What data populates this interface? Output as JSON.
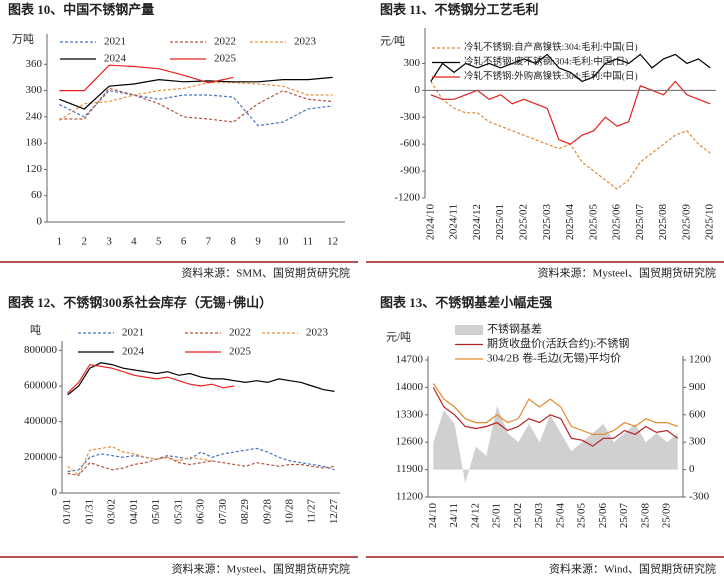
{
  "chart_data": [
    {
      "type": "line",
      "title": "图表 10、中国不锈钢产量",
      "source": "资料来源：SMM、国贸期货研究院",
      "y_label": "万吨",
      "categories": [
        "1",
        "2",
        "3",
        "4",
        "5",
        "6",
        "7",
        "8",
        "9",
        "10",
        "11",
        "12"
      ],
      "ylim": [
        0,
        420
      ],
      "yticks": [
        0,
        60,
        120,
        180,
        240,
        300,
        360
      ],
      "series": [
        {
          "name": "2021",
          "color": "#4472c4",
          "dash": true,
          "values": [
            268,
            240,
            300,
            290,
            280,
            290,
            290,
            285,
            220,
            228,
            258,
            265
          ]
        },
        {
          "name": "2022",
          "color": "#b5533c",
          "dash": true,
          "values": [
            235,
            235,
            305,
            290,
            270,
            240,
            235,
            228,
            270,
            300,
            280,
            275
          ]
        },
        {
          "name": "2023",
          "color": "#e69138",
          "dash": true,
          "values": [
            232,
            270,
            275,
            290,
            300,
            305,
            318,
            318,
            315,
            310,
            290,
            290
          ]
        },
        {
          "name": "2024",
          "color": "#000000",
          "values": [
            280,
            258,
            310,
            315,
            325,
            320,
            322,
            320,
            320,
            325,
            325,
            330
          ]
        },
        {
          "name": "2025",
          "color": "#e8231f",
          "values": [
            300,
            300,
            358,
            355,
            350,
            335,
            318,
            330,
            null,
            null,
            null,
            null
          ]
        }
      ]
    },
    {
      "type": "line",
      "title": "图表 11、不锈钢分工艺毛利",
      "source": "资料来源：Mysteel、国贸期货研究院",
      "y_label": "元/吨",
      "categories": [
        "2024/10",
        null,
        "2024/11",
        null,
        "2024/12",
        null,
        "2025/01",
        null,
        "2025/02",
        null,
        "2025/03",
        null,
        "2025/04",
        null,
        "2025/05",
        null,
        "2025/06",
        null,
        "2025/07",
        null,
        "2025/08",
        null,
        "2025/09",
        null,
        "2025/10"
      ],
      "ylim": [
        -1200,
        650
      ],
      "yticks": [
        -1200,
        -900,
        -600,
        -300,
        0,
        300
      ],
      "series": [
        {
          "name": "冷轧不锈钢:自产高镍铁:304:毛利:中国(日)",
          "color": "#e0892e",
          "dash": true,
          "values": [
            100,
            -100,
            -200,
            -250,
            -250,
            -350,
            -400,
            -450,
            -500,
            -550,
            -600,
            -650,
            -600,
            -800,
            -900,
            -1000,
            -1100,
            -1000,
            -800,
            -700,
            -600,
            -500,
            -450,
            -600,
            -700
          ]
        },
        {
          "name": "冷轧不锈钢:废不锈钢:304:毛利:中国(日)",
          "color": "#000000",
          "values": [
            100,
            300,
            200,
            300,
            250,
            300,
            250,
            300,
            350,
            300,
            400,
            250,
            200,
            100,
            150,
            300,
            350,
            300,
            400,
            250,
            350,
            400,
            300,
            350,
            250
          ]
        },
        {
          "name": "冷轧不锈钢:外购高镍铁:304:毛利:中国(日)",
          "color": "#e32119",
          "values": [
            -50,
            -100,
            -100,
            -50,
            0,
            -100,
            -50,
            -150,
            -100,
            -150,
            -200,
            -550,
            -600,
            -500,
            -450,
            -300,
            -400,
            -350,
            50,
            0,
            -50,
            100,
            -50,
            -100,
            -150
          ]
        }
      ]
    },
    {
      "type": "line",
      "title": "图表 12、不锈钢300系社会库存（无锡+佛山）",
      "source": "资料来源：Mysteel、国贸期货研究院",
      "y_label": "吨",
      "categories": [
        "01/01",
        null,
        "01/31",
        null,
        "03/02",
        null,
        "04/01",
        null,
        "05/01",
        null,
        "05/31",
        null,
        "06/30",
        null,
        "07/30",
        null,
        "08/29",
        null,
        "09/28",
        null,
        "10/28",
        null,
        "11/27",
        null,
        "12/27"
      ],
      "ylim": [
        0,
        830000
      ],
      "yticks": [
        0,
        200000,
        400000,
        600000,
        800000
      ],
      "series": [
        {
          "name": "2021",
          "color": "#4472c4",
          "dash": true,
          "values": [
            120000,
            130000,
            200000,
            220000,
            210000,
            200000,
            210000,
            200000,
            190000,
            210000,
            200000,
            190000,
            230000,
            200000,
            220000,
            230000,
            240000,
            250000,
            230000,
            200000,
            180000,
            170000,
            160000,
            150000,
            130000
          ]
        },
        {
          "name": "2022",
          "color": "#b5533c",
          "dash": true,
          "values": [
            110000,
            100000,
            170000,
            150000,
            130000,
            140000,
            160000,
            170000,
            190000,
            200000,
            170000,
            160000,
            170000,
            180000,
            170000,
            160000,
            150000,
            170000,
            160000,
            150000,
            160000,
            160000,
            150000,
            140000,
            150000
          ]
        },
        {
          "name": "2023",
          "color": "#e69138",
          "dash": true,
          "values": [
            150000,
            100000,
            240000,
            250000,
            260000,
            230000,
            220000,
            200000,
            190000,
            200000,
            180000,
            200000,
            190000,
            180000,
            null,
            null,
            null,
            null,
            null,
            null,
            null,
            null,
            null,
            null,
            null
          ]
        },
        {
          "name": "2024",
          "color": "#000000",
          "values": [
            550000,
            600000,
            700000,
            730000,
            720000,
            700000,
            690000,
            680000,
            670000,
            680000,
            660000,
            670000,
            650000,
            640000,
            640000,
            630000,
            620000,
            630000,
            620000,
            640000,
            630000,
            620000,
            600000,
            580000,
            570000
          ]
        },
        {
          "name": "2025",
          "color": "#e8231f",
          "values": [
            560000,
            620000,
            720000,
            710000,
            700000,
            680000,
            660000,
            650000,
            640000,
            650000,
            630000,
            610000,
            600000,
            610000,
            590000,
            600000,
            null,
            null,
            null,
            null,
            null,
            null,
            null,
            null,
            null
          ]
        }
      ]
    },
    {
      "type": "line",
      "title": "图表 13、不锈钢基差小幅走强",
      "source": "资料来源：Wind、国贸期货研究院",
      "y_label": "元/吨",
      "categories": [
        "24/10",
        null,
        "24/11",
        null,
        "24/12",
        null,
        "25/01",
        null,
        "25/02",
        null,
        "25/03",
        null,
        "25/04",
        null,
        "25/05",
        null,
        "25/06",
        null,
        "25/07",
        null,
        "25/08",
        null,
        "25/09",
        null
      ],
      "ylim": [
        11200,
        14700
      ],
      "yticks": [
        11200,
        11900,
        12600,
        13300,
        14000,
        14700
      ],
      "y2lim": [
        -300,
        1200
      ],
      "y2ticks": [
        -300,
        0,
        300,
        600,
        900,
        1200
      ],
      "series": [
        {
          "name": "不锈钢基差",
          "color": "#d0d0d0",
          "area": true,
          "axis": "y2",
          "values": [
            300,
            650,
            500,
            -150,
            250,
            150,
            700,
            400,
            300,
            500,
            300,
            600,
            400,
            200,
            300,
            400,
            500,
            300,
            400,
            500,
            300,
            400,
            300,
            400
          ]
        },
        {
          "name": "期货收盘价(活跃合约):不锈钢",
          "color": "#b22222",
          "values": [
            14000,
            13500,
            13300,
            13000,
            12950,
            13000,
            13100,
            12900,
            13000,
            13200,
            13100,
            13300,
            13200,
            12700,
            12650,
            12500,
            12700,
            12700,
            12900,
            12800,
            13000,
            12850,
            12900,
            12700
          ]
        },
        {
          "name": "304/2B 卷-毛边(无锡)平均价",
          "color": "#e08a2c",
          "values": [
            14100,
            13700,
            13500,
            13200,
            13100,
            13100,
            13300,
            13100,
            13200,
            13700,
            13500,
            13700,
            13500,
            13000,
            12900,
            12800,
            12800,
            12900,
            13100,
            13000,
            13200,
            13100,
            13100,
            13000
          ]
        }
      ]
    }
  ]
}
